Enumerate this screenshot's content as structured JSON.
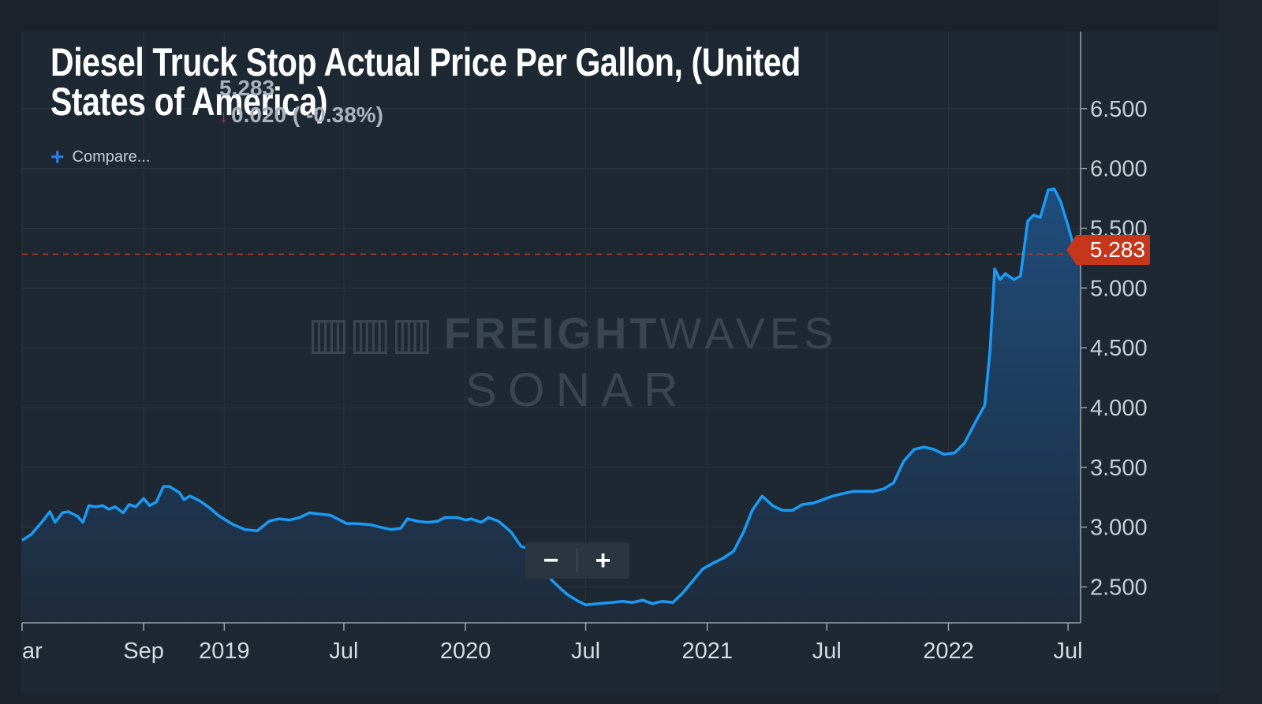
{
  "header": {
    "title": "Diesel Truck Stop Actual Price Per Gallon, (United States of America)",
    "last_price": "5.283",
    "change_text": "0.020 ( -0.38%)",
    "change_arrow": "↓"
  },
  "controls": {
    "compare_label": "Compare...",
    "zoom_out_label": "−",
    "zoom_in_label": "+",
    "zoom_out_icon": "minus-icon",
    "zoom_in_icon": "plus-icon"
  },
  "watermark": {
    "line1_bold": "FREIGHT",
    "line1_thin": "WAVES",
    "line2": "SONAR"
  },
  "colors": {
    "line": "#1a9bf5",
    "fill_top": "#1f4d7d",
    "fill_bottom": "#1e2b3b",
    "current_price": "#c5361b"
  },
  "chart_data": {
    "type": "area",
    "title": "Diesel Truck Stop Actual Price Per Gallon, (United States of America)",
    "xlabel": "",
    "ylabel": "",
    "x_range": [
      "2018-03-01",
      "2022-07-20"
    ],
    "ylim": [
      2.2,
      7.0
    ],
    "y_ticks": [
      "2.500",
      "3.000",
      "3.500",
      "4.000",
      "4.500",
      "5.000",
      "5.500",
      "6.000",
      "6.500"
    ],
    "x_ticks": [
      {
        "label": "ar",
        "date": "2018-03-01"
      },
      {
        "label": "Sep",
        "date": "2018-09-01"
      },
      {
        "label": "2019",
        "date": "2019-01-01"
      },
      {
        "label": "Jul",
        "date": "2019-07-01"
      },
      {
        "label": "2020",
        "date": "2020-01-01"
      },
      {
        "label": "Jul",
        "date": "2020-07-01"
      },
      {
        "label": "2021",
        "date": "2021-01-01"
      },
      {
        "label": "Jul",
        "date": "2021-07-01"
      },
      {
        "label": "2022",
        "date": "2022-01-01"
      },
      {
        "label": "Jul",
        "date": "2022-07-01"
      }
    ],
    "current_value": 5.283,
    "current_value_label": "5.283",
    "grid": true,
    "legend": "none",
    "series": [
      {
        "points": [
          [
            "2018-03-01",
            2.89
          ],
          [
            "2018-03-15",
            2.94
          ],
          [
            "2018-04-01",
            3.05
          ],
          [
            "2018-04-12",
            3.13
          ],
          [
            "2018-04-20",
            3.04
          ],
          [
            "2018-05-01",
            3.12
          ],
          [
            "2018-05-10",
            3.13
          ],
          [
            "2018-05-24",
            3.09
          ],
          [
            "2018-06-01",
            3.04
          ],
          [
            "2018-06-10",
            3.18
          ],
          [
            "2018-06-20",
            3.17
          ],
          [
            "2018-07-01",
            3.18
          ],
          [
            "2018-07-10",
            3.15
          ],
          [
            "2018-07-20",
            3.17
          ],
          [
            "2018-08-01",
            3.12
          ],
          [
            "2018-08-10",
            3.19
          ],
          [
            "2018-08-20",
            3.17
          ],
          [
            "2018-09-01",
            3.24
          ],
          [
            "2018-09-10",
            3.18
          ],
          [
            "2018-09-20",
            3.21
          ],
          [
            "2018-10-01",
            3.34
          ],
          [
            "2018-10-10",
            3.34
          ],
          [
            "2018-10-25",
            3.29
          ],
          [
            "2018-11-01",
            3.23
          ],
          [
            "2018-11-10",
            3.26
          ],
          [
            "2018-11-25",
            3.22
          ],
          [
            "2018-12-10",
            3.16
          ],
          [
            "2018-12-25",
            3.09
          ],
          [
            "2019-01-15",
            3.02
          ],
          [
            "2019-02-01",
            2.98
          ],
          [
            "2019-02-20",
            2.97
          ],
          [
            "2019-03-10",
            3.05
          ],
          [
            "2019-03-25",
            3.07
          ],
          [
            "2019-04-10",
            3.06
          ],
          [
            "2019-04-25",
            3.08
          ],
          [
            "2019-05-10",
            3.12
          ],
          [
            "2019-05-25",
            3.11
          ],
          [
            "2019-06-10",
            3.1
          ],
          [
            "2019-06-25",
            3.06
          ],
          [
            "2019-07-05",
            3.03
          ],
          [
            "2019-07-20",
            3.03
          ],
          [
            "2019-08-10",
            3.02
          ],
          [
            "2019-08-25",
            3.0
          ],
          [
            "2019-09-10",
            2.98
          ],
          [
            "2019-09-25",
            2.99
          ],
          [
            "2019-10-05",
            3.07
          ],
          [
            "2019-10-20",
            3.05
          ],
          [
            "2019-11-05",
            3.04
          ],
          [
            "2019-11-20",
            3.05
          ],
          [
            "2019-12-01",
            3.08
          ],
          [
            "2019-12-20",
            3.08
          ],
          [
            "2020-01-01",
            3.06
          ],
          [
            "2020-01-10",
            3.07
          ],
          [
            "2020-01-25",
            3.04
          ],
          [
            "2020-02-05",
            3.08
          ],
          [
            "2020-02-20",
            3.05
          ],
          [
            "2020-03-10",
            2.96
          ],
          [
            "2020-03-25",
            2.84
          ],
          [
            "2020-04-10",
            2.81
          ],
          [
            "2020-04-25",
            2.74
          ],
          [
            "2020-05-10",
            2.56
          ],
          [
            "2020-05-25",
            2.48
          ],
          [
            "2020-06-05",
            2.43
          ],
          [
            "2020-06-20",
            2.38
          ],
          [
            "2020-07-01",
            2.35
          ],
          [
            "2020-07-20",
            2.36
          ],
          [
            "2020-08-10",
            2.37
          ],
          [
            "2020-08-25",
            2.38
          ],
          [
            "2020-09-10",
            2.37
          ],
          [
            "2020-09-25",
            2.39
          ],
          [
            "2020-10-10",
            2.36
          ],
          [
            "2020-10-25",
            2.38
          ],
          [
            "2020-11-10",
            2.37
          ],
          [
            "2020-11-25",
            2.45
          ],
          [
            "2020-12-10",
            2.55
          ],
          [
            "2020-12-25",
            2.65
          ],
          [
            "2021-01-10",
            2.7
          ],
          [
            "2021-01-25",
            2.74
          ],
          [
            "2021-02-10",
            2.8
          ],
          [
            "2021-02-25",
            2.96
          ],
          [
            "2021-03-10",
            3.14
          ],
          [
            "2021-03-25",
            3.26
          ],
          [
            "2021-04-10",
            3.18
          ],
          [
            "2021-04-25",
            3.14
          ],
          [
            "2021-05-10",
            3.14
          ],
          [
            "2021-05-25",
            3.19
          ],
          [
            "2021-06-10",
            3.2
          ],
          [
            "2021-06-25",
            3.23
          ],
          [
            "2021-07-10",
            3.26
          ],
          [
            "2021-07-25",
            3.28
          ],
          [
            "2021-08-10",
            3.3
          ],
          [
            "2021-08-25",
            3.3
          ],
          [
            "2021-09-10",
            3.3
          ],
          [
            "2021-09-25",
            3.32
          ],
          [
            "2021-10-10",
            3.37
          ],
          [
            "2021-10-25",
            3.55
          ],
          [
            "2021-11-10",
            3.65
          ],
          [
            "2021-11-25",
            3.67
          ],
          [
            "2021-12-10",
            3.65
          ],
          [
            "2021-12-25",
            3.61
          ],
          [
            "2022-01-10",
            3.62
          ],
          [
            "2022-01-25",
            3.7
          ],
          [
            "2022-02-10",
            3.87
          ],
          [
            "2022-02-25",
            4.02
          ],
          [
            "2022-03-05",
            4.48
          ],
          [
            "2022-03-12",
            5.16
          ],
          [
            "2022-03-20",
            5.07
          ],
          [
            "2022-03-28",
            5.12
          ],
          [
            "2022-04-10",
            5.07
          ],
          [
            "2022-04-20",
            5.1
          ],
          [
            "2022-05-01",
            5.56
          ],
          [
            "2022-05-10",
            5.61
          ],
          [
            "2022-05-20",
            5.59
          ],
          [
            "2022-06-01",
            5.82
          ],
          [
            "2022-06-10",
            5.83
          ],
          [
            "2022-06-20",
            5.72
          ],
          [
            "2022-07-01",
            5.52
          ],
          [
            "2022-07-11",
            5.32
          ],
          [
            "2022-07-20",
            5.283
          ]
        ]
      }
    ]
  }
}
